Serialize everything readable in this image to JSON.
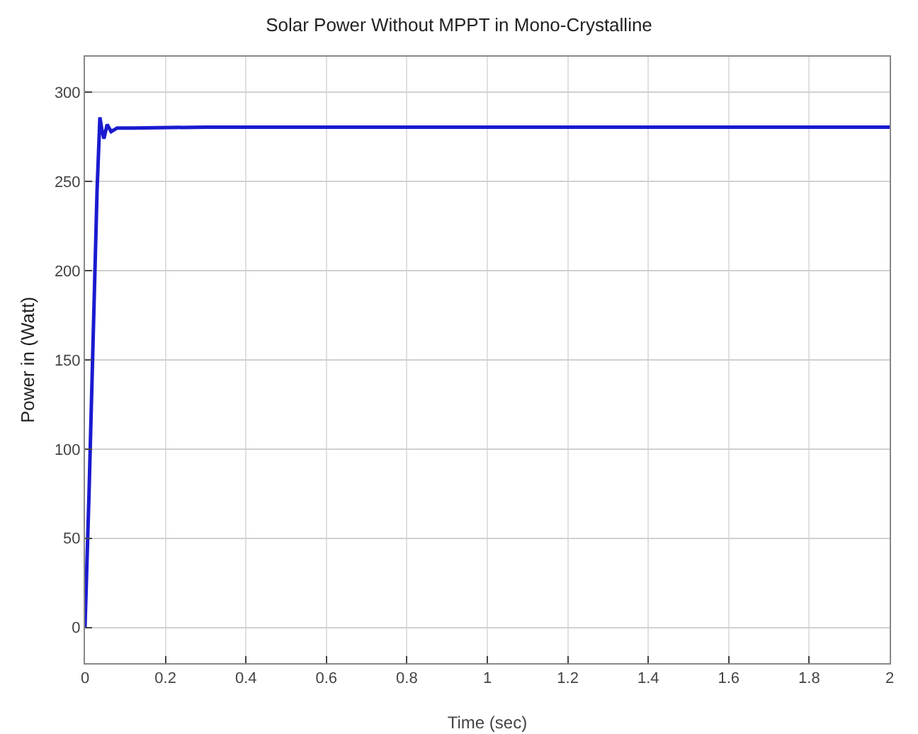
{
  "chart_data": {
    "type": "line",
    "title": "Solar Power Without MPPT in Mono-Crystalline",
    "xlabel": "Time (sec)",
    "ylabel": "Power in (Watt)",
    "series": [
      {
        "color": "#1a1ad0",
        "x": [
          0,
          0.01,
          0.02,
          0.03,
          0.037,
          0.042,
          0.047,
          0.055,
          0.065,
          0.08,
          0.12,
          0.3,
          0.6,
          1,
          1.5,
          2
        ],
        "values": [
          0,
          75,
          160,
          245,
          286,
          279,
          274,
          282,
          278,
          280,
          280,
          280.5,
          280.5,
          280.5,
          280.5,
          280.5
        ]
      }
    ],
    "xlim": [
      0,
      2
    ],
    "xticks": [
      0,
      0.2,
      0.4,
      0.6,
      0.8,
      1,
      1.2,
      1.4,
      1.6,
      1.8,
      2
    ],
    "ylim": [
      -20,
      320
    ],
    "yticks": [
      0,
      50,
      100,
      150,
      200,
      250,
      300
    ],
    "grid": true,
    "marker": "none",
    "line_style": "solid"
  }
}
